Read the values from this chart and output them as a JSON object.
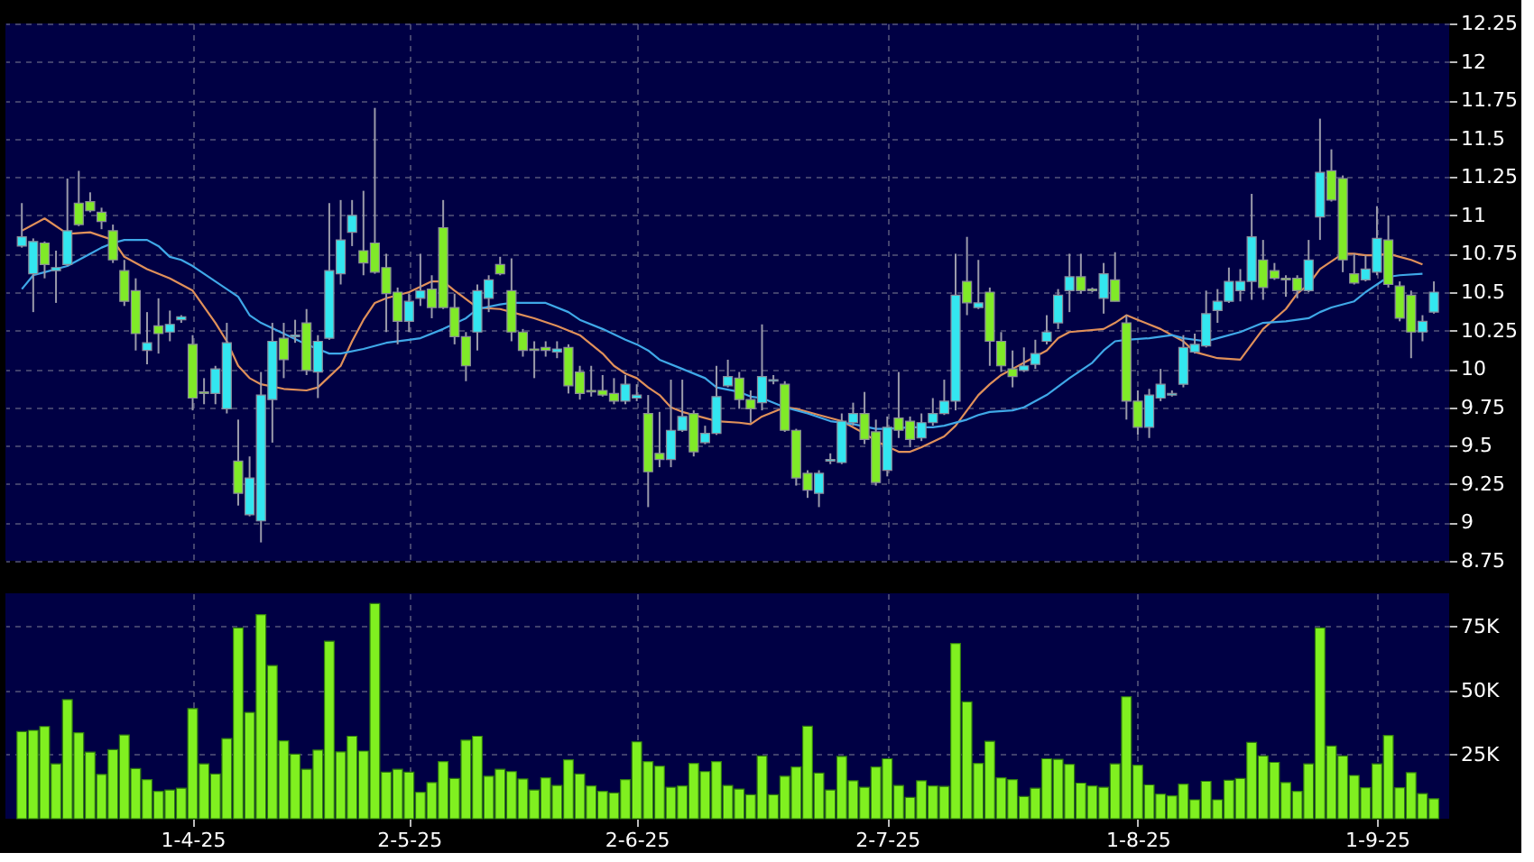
{
  "chart_data": [
    {
      "type": "candlestick",
      "categories": [
        null,
        null,
        null,
        null,
        null,
        null,
        null,
        null,
        null,
        null,
        null,
        null,
        null,
        null,
        null,
        null,
        null,
        null,
        null,
        null,
        null,
        null,
        null,
        null,
        null,
        null,
        null,
        null,
        null,
        null,
        null,
        null,
        null,
        null,
        null,
        null,
        null,
        null,
        null,
        null,
        null,
        null,
        null,
        null,
        null,
        null,
        null,
        null,
        null,
        null,
        null,
        null,
        null,
        null,
        null,
        null,
        null,
        null,
        null,
        null,
        null,
        null,
        null,
        null,
        null,
        null,
        null,
        null,
        null,
        null,
        null,
        null,
        null,
        null,
        null,
        null,
        null,
        null,
        null,
        null,
        null,
        null,
        null,
        null,
        null,
        null,
        null,
        null,
        null,
        null,
        null,
        null,
        null,
        null,
        null,
        null,
        null,
        null,
        null,
        null,
        null,
        null,
        null,
        null,
        null,
        null,
        null,
        null,
        null,
        null,
        null,
        null,
        null,
        null,
        null,
        null,
        null,
        null,
        null,
        null,
        null,
        null,
        null,
        null,
        null
      ],
      "ohlc": [
        [
          10.8,
          11.08,
          10.79,
          10.86
        ],
        [
          10.62,
          10.85,
          10.37,
          10.83
        ],
        [
          10.82,
          10.83,
          10.59,
          10.68
        ],
        [
          10.64,
          10.77,
          10.43,
          10.66
        ],
        [
          10.68,
          11.24,
          10.67,
          10.9
        ],
        [
          11.08,
          11.29,
          10.93,
          10.94
        ],
        [
          11.09,
          11.15,
          11.02,
          11.03
        ],
        [
          11.02,
          11.05,
          10.91,
          10.96
        ],
        [
          10.9,
          10.94,
          10.69,
          10.71
        ],
        [
          10.64,
          10.71,
          10.41,
          10.44
        ],
        [
          10.51,
          10.59,
          10.12,
          10.23
        ],
        [
          10.12,
          10.37,
          10.03,
          10.17
        ],
        [
          10.28,
          10.46,
          10.1,
          10.23
        ],
        [
          10.24,
          10.38,
          10.18,
          10.29
        ],
        [
          10.32,
          10.35,
          10.3,
          10.34
        ],
        [
          10.16,
          10.22,
          9.73,
          9.81
        ],
        [
          9.85,
          9.94,
          9.77,
          9.84
        ],
        [
          9.84,
          10.02,
          9.77,
          10.0
        ],
        [
          9.74,
          10.3,
          9.71,
          10.17
        ],
        [
          9.4,
          9.67,
          9.11,
          9.19
        ],
        [
          9.05,
          9.43,
          9.04,
          9.29
        ],
        [
          9.01,
          9.98,
          8.87,
          9.83
        ],
        [
          9.8,
          10.3,
          9.52,
          10.18
        ],
        [
          10.2,
          10.3,
          9.94,
          10.06
        ],
        [
          10.21,
          10.32,
          10.17,
          10.22
        ],
        [
          10.3,
          10.39,
          9.96,
          9.99
        ],
        [
          9.98,
          10.22,
          9.81,
          10.18
        ],
        [
          10.2,
          11.08,
          10.19,
          10.64
        ],
        [
          10.62,
          11.1,
          10.55,
          10.84
        ],
        [
          10.89,
          11.1,
          10.8,
          11.0
        ],
        [
          10.77,
          11.16,
          10.61,
          10.69
        ],
        [
          10.82,
          11.7,
          10.62,
          10.63
        ],
        [
          10.66,
          10.75,
          10.24,
          10.49
        ],
        [
          10.5,
          10.53,
          10.16,
          10.31
        ],
        [
          10.31,
          10.49,
          10.24,
          10.44
        ],
        [
          10.46,
          10.75,
          10.41,
          10.51
        ],
        [
          10.52,
          10.61,
          10.33,
          10.4
        ],
        [
          10.92,
          11.1,
          10.39,
          10.4
        ],
        [
          10.4,
          10.49,
          10.16,
          10.21
        ],
        [
          10.21,
          10.24,
          9.92,
          10.02
        ],
        [
          10.24,
          10.55,
          10.12,
          10.51
        ],
        [
          10.46,
          10.61,
          10.37,
          10.58
        ],
        [
          10.68,
          10.73,
          10.61,
          10.62
        ],
        [
          10.51,
          10.72,
          10.18,
          10.24
        ],
        [
          10.24,
          10.26,
          10.08,
          10.12
        ],
        [
          10.13,
          10.18,
          9.94,
          10.12
        ],
        [
          10.14,
          10.18,
          10.08,
          10.12
        ],
        [
          10.11,
          10.18,
          10.07,
          10.13
        ],
        [
          10.14,
          10.16,
          9.84,
          9.89
        ],
        [
          9.98,
          10.02,
          9.8,
          9.84
        ],
        [
          9.86,
          10.02,
          9.82,
          9.85
        ],
        [
          9.86,
          9.96,
          9.82,
          9.83
        ],
        [
          9.84,
          9.94,
          9.77,
          9.79
        ],
        [
          9.79,
          9.96,
          9.77,
          9.9
        ],
        [
          9.81,
          9.9,
          9.79,
          9.83
        ],
        [
          9.71,
          9.83,
          9.1,
          9.33
        ],
        [
          9.45,
          9.72,
          9.36,
          9.41
        ],
        [
          9.41,
          9.93,
          9.36,
          9.6
        ],
        [
          9.6,
          9.93,
          9.59,
          9.69
        ],
        [
          9.71,
          9.73,
          9.43,
          9.46
        ],
        [
          9.52,
          9.63,
          9.51,
          9.58
        ],
        [
          9.58,
          10.02,
          9.57,
          9.82
        ],
        [
          9.89,
          10.06,
          9.88,
          9.95
        ],
        [
          9.94,
          9.98,
          9.74,
          9.8
        ],
        [
          9.8,
          9.86,
          9.65,
          9.74
        ],
        [
          9.78,
          10.29,
          9.73,
          9.95
        ],
        [
          9.92,
          9.96,
          9.9,
          9.93
        ],
        [
          9.9,
          9.92,
          9.59,
          9.6
        ],
        [
          9.6,
          9.61,
          9.24,
          9.29
        ],
        [
          9.32,
          9.34,
          9.16,
          9.21
        ],
        [
          9.19,
          9.34,
          9.1,
          9.32
        ],
        [
          9.4,
          9.45,
          9.38,
          9.41
        ],
        [
          9.39,
          9.71,
          9.38,
          9.66
        ],
        [
          9.65,
          9.78,
          9.63,
          9.71
        ],
        [
          9.71,
          9.85,
          9.51,
          9.54
        ],
        [
          9.59,
          9.67,
          9.24,
          9.26
        ],
        [
          9.34,
          9.69,
          9.3,
          9.62
        ],
        [
          9.68,
          9.98,
          9.55,
          9.6
        ],
        [
          9.66,
          9.69,
          9.49,
          9.54
        ],
        [
          9.55,
          9.71,
          9.53,
          9.65
        ],
        [
          9.65,
          9.81,
          9.63,
          9.71
        ],
        [
          9.71,
          9.93,
          9.7,
          9.79
        ],
        [
          9.79,
          10.75,
          9.73,
          10.48
        ],
        [
          10.57,
          10.86,
          10.35,
          10.43
        ],
        [
          10.4,
          10.71,
          10.39,
          10.43
        ],
        [
          10.5,
          10.53,
          10.02,
          10.18
        ],
        [
          10.18,
          10.24,
          9.98,
          10.02
        ],
        [
          10.0,
          10.12,
          9.88,
          9.95
        ],
        [
          9.99,
          10.14,
          9.98,
          10.02
        ],
        [
          10.03,
          10.19,
          10.0,
          10.1
        ],
        [
          10.18,
          10.35,
          10.16,
          10.24
        ],
        [
          10.3,
          10.52,
          10.26,
          10.48
        ],
        [
          10.51,
          10.75,
          10.37,
          10.6
        ],
        [
          10.6,
          10.75,
          10.49,
          10.51
        ],
        [
          10.52,
          10.53,
          10.5,
          10.51
        ],
        [
          10.46,
          10.69,
          10.36,
          10.62
        ],
        [
          10.58,
          10.76,
          10.44,
          10.44
        ],
        [
          10.3,
          10.35,
          9.67,
          9.79
        ],
        [
          9.79,
          9.86,
          9.57,
          9.62
        ],
        [
          9.62,
          9.87,
          9.55,
          9.83
        ],
        [
          9.81,
          10.0,
          9.79,
          9.9
        ],
        [
          9.83,
          9.86,
          9.82,
          9.84
        ],
        [
          9.9,
          10.22,
          9.88,
          10.14
        ],
        [
          10.11,
          10.23,
          10.1,
          10.16
        ],
        [
          10.15,
          10.51,
          10.14,
          10.36
        ],
        [
          10.38,
          10.52,
          10.3,
          10.44
        ],
        [
          10.44,
          10.66,
          10.43,
          10.57
        ],
        [
          10.51,
          10.65,
          10.44,
          10.57
        ],
        [
          10.57,
          11.14,
          10.45,
          10.86
        ],
        [
          10.71,
          10.84,
          10.45,
          10.53
        ],
        [
          10.64,
          10.69,
          10.58,
          10.59
        ],
        [
          10.59,
          10.61,
          10.47,
          10.58
        ],
        [
          10.59,
          10.61,
          10.46,
          10.51
        ],
        [
          10.51,
          10.84,
          10.5,
          10.71
        ],
        [
          10.99,
          11.63,
          10.84,
          11.28
        ],
        [
          11.29,
          11.43,
          11.09,
          11.1
        ],
        [
          11.24,
          11.26,
          10.63,
          10.71
        ],
        [
          10.62,
          10.75,
          10.55,
          10.56
        ],
        [
          10.58,
          10.74,
          10.57,
          10.65
        ],
        [
          10.63,
          11.06,
          10.61,
          10.85
        ],
        [
          10.84,
          11.0,
          10.53,
          10.55
        ],
        [
          10.54,
          10.57,
          10.31,
          10.33
        ],
        [
          10.48,
          10.51,
          10.07,
          10.24
        ],
        [
          10.24,
          10.35,
          10.18,
          10.31
        ],
        [
          10.37,
          10.57,
          10.36,
          10.5
        ]
      ],
      "colors": [
        "#33e6f0",
        "#33e6f0",
        "#80ea28",
        "#33e6f0",
        "#33e6f0",
        "#80ea28",
        "#80ea28",
        "#80ea28",
        "#80ea28",
        "#80ea28",
        "#80ea28",
        "#33e6f0",
        "#80ea28",
        "#33e6f0",
        "#33e6f0",
        "#80ea28",
        "#80ea28",
        "#33e6f0",
        "#33e6f0",
        "#80ea28",
        "#33e6f0",
        "#33e6f0",
        "#33e6f0",
        "#80ea28",
        "#33e6f0",
        "#80ea28",
        "#33e6f0",
        "#33e6f0",
        "#33e6f0",
        "#33e6f0",
        "#80ea28",
        "#80ea28",
        "#80ea28",
        "#80ea28",
        "#33e6f0",
        "#33e6f0",
        "#80ea28",
        "#80ea28",
        "#80ea28",
        "#80ea28",
        "#33e6f0",
        "#33e6f0",
        "#80ea28",
        "#80ea28",
        "#80ea28",
        "#80ea28",
        "#80ea28",
        "#33e6f0",
        "#80ea28",
        "#80ea28",
        "#80ea28",
        "#80ea28",
        "#80ea28",
        "#33e6f0",
        "#33e6f0",
        "#80ea28",
        "#80ea28",
        "#33e6f0",
        "#33e6f0",
        "#80ea28",
        "#33e6f0",
        "#33e6f0",
        "#33e6f0",
        "#80ea28",
        "#80ea28",
        "#33e6f0",
        "#33e6f0",
        "#80ea28",
        "#80ea28",
        "#80ea28",
        "#33e6f0",
        "#33e6f0",
        "#33e6f0",
        "#33e6f0",
        "#80ea28",
        "#80ea28",
        "#33e6f0",
        "#80ea28",
        "#80ea28",
        "#33e6f0",
        "#33e6f0",
        "#33e6f0",
        "#33e6f0",
        "#80ea28",
        "#33e6f0",
        "#80ea28",
        "#80ea28",
        "#80ea28",
        "#33e6f0",
        "#33e6f0",
        "#33e6f0",
        "#33e6f0",
        "#33e6f0",
        "#80ea28",
        "#80ea28",
        "#33e6f0",
        "#80ea28",
        "#80ea28",
        "#80ea28",
        "#33e6f0",
        "#33e6f0",
        "#33e6f0",
        "#33e6f0",
        "#33e6f0",
        "#33e6f0",
        "#33e6f0",
        "#33e6f0",
        "#33e6f0",
        "#33e6f0",
        "#80ea28",
        "#80ea28",
        "#80ea28",
        "#80ea28",
        "#33e6f0",
        "#33e6f0",
        "#80ea28",
        "#80ea28",
        "#80ea28",
        "#33e6f0",
        "#33e6f0",
        "#80ea28",
        "#80ea28",
        "#80ea28",
        "#33e6f0",
        "#33e6f0"
      ],
      "ylim": [
        8.75,
        12.25
      ],
      "yticks": [
        8.75,
        9,
        9.25,
        9.5,
        9.75,
        10,
        10.25,
        10.5,
        10.75,
        11,
        11.25,
        11.5,
        11.75,
        12,
        12.25
      ],
      "grid": true,
      "tick_labels": "y",
      "marker": "none",
      "line_style": "solid",
      "series": [
        {
          "type": "line",
          "color": "#e0905a",
          "values": [
            10.9,
            null,
            10.98,
            null,
            10.88,
            null,
            10.89,
            null,
            10.84,
            10.73,
            null,
            10.65,
            null,
            10.59,
            null,
            10.51,
            null,
            10.3,
            10.18,
            10.02,
            9.94,
            9.9,
            null,
            9.87,
            null,
            9.86,
            9.88,
            9.95,
            10.02,
            10.18,
            10.32,
            10.43,
            10.46,
            null,
            10.5,
            null,
            10.57,
            10.57,
            10.51,
            null,
            10.4,
            null,
            10.39,
            10.37,
            null,
            10.33,
            null,
            10.28,
            null,
            10.22,
            null,
            10.1,
            10.02,
            9.97,
            9.94,
            9.88,
            9.83,
            9.75,
            9.72,
            null,
            9.68,
            9.66,
            null,
            9.65,
            9.64,
            9.69,
            null,
            9.75,
            9.74,
            null,
            9.7,
            null,
            9.66,
            null,
            9.58,
            9.53,
            null,
            9.46,
            9.46,
            9.49,
            null,
            9.56,
            9.63,
            9.73,
            9.83,
            9.9,
            9.96,
            10.0,
            10.04,
            null,
            10.12,
            10.2,
            10.24,
            null,
            null,
            10.26,
            10.3,
            10.35,
            10.32,
            null,
            10.26,
            null,
            10.18,
            10.11,
            null,
            10.07,
            null,
            10.06,
            10.16,
            10.26,
            null,
            10.39,
            10.49,
            10.55,
            10.65,
            null,
            10.75,
            10.75,
            10.74,
            10.74,
            10.75,
            10.73,
            10.71,
            10.68,
            null
          ]
        },
        {
          "type": "line",
          "color": "#3fa8e8",
          "values": [
            10.52,
            10.61,
            10.63,
            null,
            10.67,
            null,
            10.75,
            10.79,
            10.82,
            10.84,
            null,
            10.84,
            10.8,
            10.73,
            10.71,
            10.67,
            null,
            10.57,
            null,
            10.47,
            10.35,
            10.3,
            null,
            10.23,
            null,
            10.16,
            null,
            10.1,
            10.1,
            null,
            10.13,
            null,
            10.17,
            null,
            10.19,
            10.2,
            null,
            10.26,
            null,
            10.33,
            10.39,
            null,
            10.42,
            10.43,
            null,
            10.43,
            10.43,
            null,
            10.37,
            10.32,
            null,
            10.26,
            null,
            10.19,
            10.16,
            10.12,
            10.06,
            null,
            10.0,
            null,
            9.94,
            9.88,
            null,
            9.85,
            9.82,
            9.81,
            null,
            9.75,
            null,
            9.71,
            null,
            9.66,
            null,
            9.64,
            null,
            9.61,
            9.61,
            null,
            9.62,
            null,
            9.62,
            9.63,
            null,
            9.67,
            9.7,
            9.72,
            null,
            9.73,
            9.75,
            null,
            9.83,
            null,
            9.94,
            null,
            10.04,
            10.12,
            10.18,
            10.19,
            null,
            10.2,
            null,
            10.22,
            10.2,
            null,
            10.18,
            10.2,
            null,
            10.24,
            null,
            10.3,
            null,
            10.31,
            null,
            10.33,
            10.37,
            10.4,
            null,
            10.44,
            10.5,
            10.55,
            10.6,
            10.61,
            null,
            10.62,
            null
          ]
        }
      ]
    },
    {
      "type": "bar",
      "categories": [
        null,
        null,
        null,
        null,
        null,
        null,
        null,
        null,
        null,
        null,
        null,
        null,
        null,
        null,
        null,
        "1-4-25",
        null,
        null,
        null,
        null,
        null,
        null,
        null,
        null,
        null,
        null,
        null,
        null,
        null,
        null,
        null,
        null,
        null,
        null,
        "2-5-25",
        null,
        null,
        null,
        null,
        null,
        null,
        null,
        null,
        null,
        null,
        null,
        null,
        null,
        null,
        null,
        null,
        null,
        null,
        null,
        "2-6-25",
        null,
        null,
        null,
        null,
        null,
        null,
        null,
        null,
        null,
        null,
        null,
        null,
        null,
        null,
        null,
        null,
        null,
        null,
        null,
        null,
        null,
        "2-7-25",
        null,
        null,
        null,
        null,
        null,
        null,
        null,
        null,
        null,
        null,
        null,
        null,
        null,
        null,
        null,
        null,
        null,
        null,
        null,
        null,
        null,
        "1-8-25",
        null,
        null,
        null,
        null,
        null,
        null,
        null,
        null,
        null,
        null,
        null,
        null,
        null,
        null,
        null,
        null,
        null,
        null,
        null,
        null,
        "1-9-25",
        null,
        null,
        null,
        null,
        null
      ],
      "values": [
        34000,
        34500,
        36000,
        21400,
        46500,
        33600,
        26000,
        17300,
        27000,
        32700,
        19600,
        15300,
        10700,
        11200,
        11900,
        43000,
        21400,
        17500,
        31300,
        74500,
        41500,
        79700,
        59800,
        30400,
        25200,
        19300,
        26800,
        69300,
        26100,
        32200,
        26400,
        84000,
        18200,
        19300,
        18200,
        10300,
        14100,
        22300,
        15700,
        30700,
        32200,
        16600,
        19300,
        18400,
        15500,
        11200,
        16000,
        13000,
        23000,
        17500,
        12800,
        10700,
        10100,
        15300,
        30000,
        22300,
        20500,
        12300,
        12800,
        21600,
        18400,
        22300,
        13000,
        11600,
        9400,
        24500,
        9400,
        16600,
        20200,
        36100,
        17800,
        11200,
        24300,
        14800,
        12300,
        20200,
        23400,
        13000,
        8300,
        14800,
        12800,
        12600,
        68400,
        45600,
        21600,
        30200,
        16000,
        15300,
        8700,
        11900,
        23400,
        23200,
        21200,
        13900,
        12800,
        12300,
        21400,
        47600,
        20900,
        13200,
        9600,
        8900,
        13500,
        7400,
        14600,
        7400,
        15000,
        15700,
        29800,
        24500,
        22000,
        14100,
        10700,
        21400,
        74500,
        28400,
        24500,
        16900,
        12100,
        21400,
        32500,
        12100,
        18000,
        9800,
        7800
      ],
      "color": "#80f020",
      "ylim": [
        0,
        88000
      ],
      "yticks": [
        {
          "value": 25000,
          "label": "25K"
        },
        {
          "value": 50000,
          "label": "50K"
        },
        {
          "value": 75000,
          "label": "75K"
        }
      ],
      "grid": true
    }
  ]
}
